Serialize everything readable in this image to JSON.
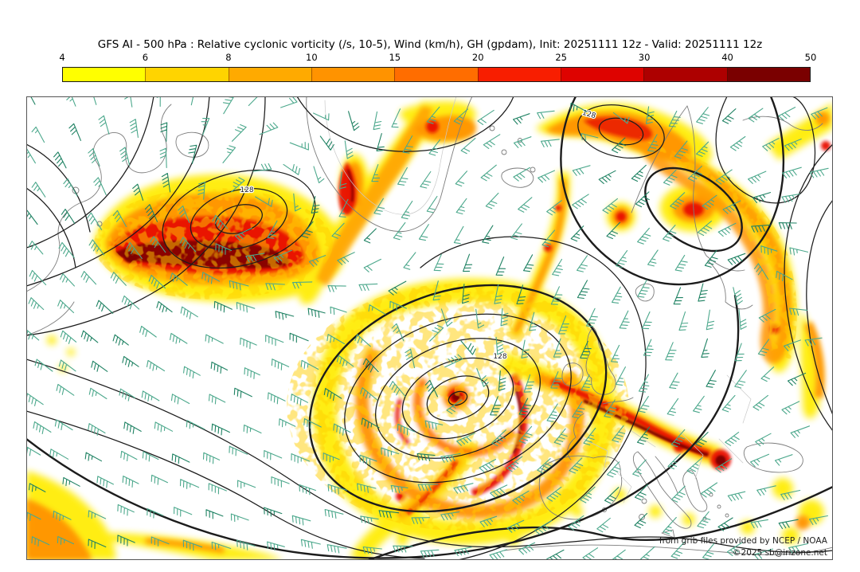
{
  "header": {
    "title": "GFS AI - 500 hPa : Relative cyclonic vorticity (/s, 10-5), Wind (km/h), GH (gpdam), Init: 20251111 12z - Valid: 20251111 12z"
  },
  "colorbar": {
    "tick_labels": [
      "4",
      "6",
      "8",
      "10",
      "15",
      "20",
      "25",
      "30",
      "40",
      "50"
    ],
    "segment_colors": [
      "#ffff00",
      "#ffd400",
      "#ffaa00",
      "#ff9300",
      "#ff6d00",
      "#f81e00",
      "#de0300",
      "#ad0000",
      "#7a0000"
    ]
  },
  "map": {
    "contour_label": "128",
    "attribution_line1": "from grib files provided by NCEP / NOAA",
    "attribution_line2": "©2025 sb@irizone.net",
    "colors": {
      "wind_barb": "#4ca88c",
      "wind_barb_dark": "#1f8263",
      "contour": "#1c1c1c",
      "coastline": "#7d7d7d",
      "border_light": "#c9c9c9",
      "frame": "#555555"
    }
  }
}
